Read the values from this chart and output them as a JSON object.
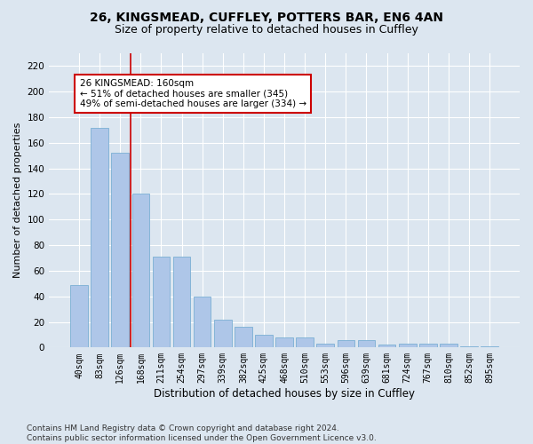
{
  "title1": "26, KINGSMEAD, CUFFLEY, POTTERS BAR, EN6 4AN",
  "title2": "Size of property relative to detached houses in Cuffley",
  "xlabel": "Distribution of detached houses by size in Cuffley",
  "ylabel": "Number of detached properties",
  "categories": [
    "40sqm",
    "83sqm",
    "126sqm",
    "168sqm",
    "211sqm",
    "254sqm",
    "297sqm",
    "339sqm",
    "382sqm",
    "425sqm",
    "468sqm",
    "510sqm",
    "553sqm",
    "596sqm",
    "639sqm",
    "681sqm",
    "724sqm",
    "767sqm",
    "810sqm",
    "852sqm",
    "895sqm"
  ],
  "values": [
    49,
    172,
    152,
    120,
    71,
    71,
    40,
    22,
    16,
    10,
    8,
    8,
    3,
    6,
    6,
    2,
    3,
    3,
    3,
    1,
    1
  ],
  "bar_color": "#aec6e8",
  "bar_edge_color": "#7bafd4",
  "vline_color": "#cc0000",
  "annotation_box_text": "26 KINGSMEAD: 160sqm\n← 51% of detached houses are smaller (345)\n49% of semi-detached houses are larger (334) →",
  "annotation_box_color": "#cc0000",
  "annotation_bg": "#ffffff",
  "ylim": [
    0,
    230
  ],
  "yticks": [
    0,
    20,
    40,
    60,
    80,
    100,
    120,
    140,
    160,
    180,
    200,
    220
  ],
  "footer": "Contains HM Land Registry data © Crown copyright and database right 2024.\nContains public sector information licensed under the Open Government Licence v3.0.",
  "fig_bg": "#dce6f0",
  "plot_bg": "#dce6f0",
  "grid_color": "#ffffff",
  "title1_fontsize": 10,
  "title2_fontsize": 9,
  "tick_fontsize": 7,
  "ylabel_fontsize": 8,
  "xlabel_fontsize": 8.5,
  "footer_fontsize": 6.5,
  "ann_fontsize": 7.5
}
